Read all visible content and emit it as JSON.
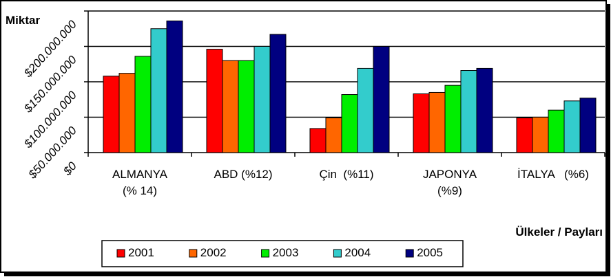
{
  "chart_data": {
    "type": "bar",
    "y_axis_title": "Miktar",
    "x_axis_title": "Ülkeler / Payları",
    "categories": [
      "ALMANYA\n(% 14)",
      "ABD (%12)",
      "Çin  (%11)",
      "JAPONYA\n(%9)",
      "İTALYA   (%6)"
    ],
    "series": [
      {
        "name": "2001",
        "color": "#ff0000",
        "values": [
          108000000,
          146000000,
          34000000,
          83000000,
          49000000
        ]
      },
      {
        "name": "2002",
        "color": "#ff6600",
        "values": [
          112000000,
          130000000,
          49000000,
          85000000,
          50000000
        ]
      },
      {
        "name": "2003",
        "color": "#00ee00",
        "values": [
          136000000,
          130000000,
          82000000,
          95000000,
          60000000
        ]
      },
      {
        "name": "2004",
        "color": "#33cccc",
        "values": [
          175000000,
          150000000,
          119000000,
          116000000,
          73000000
        ]
      },
      {
        "name": "2005",
        "color": "#000080",
        "values": [
          186000000,
          167000000,
          150000000,
          119000000,
          77000000
        ]
      }
    ],
    "ylim": [
      0,
      200000000
    ],
    "yticks": [
      {
        "value": 0,
        "label": "$0"
      },
      {
        "value": 50000000,
        "label": "$50.000.000"
      },
      {
        "value": 100000000,
        "label": "$100.000.000"
      },
      {
        "value": 150000000,
        "label": "$150.000.000"
      },
      {
        "value": 200000000,
        "label": "$200.000.000"
      }
    ],
    "grid": true,
    "legend": "bottom"
  }
}
